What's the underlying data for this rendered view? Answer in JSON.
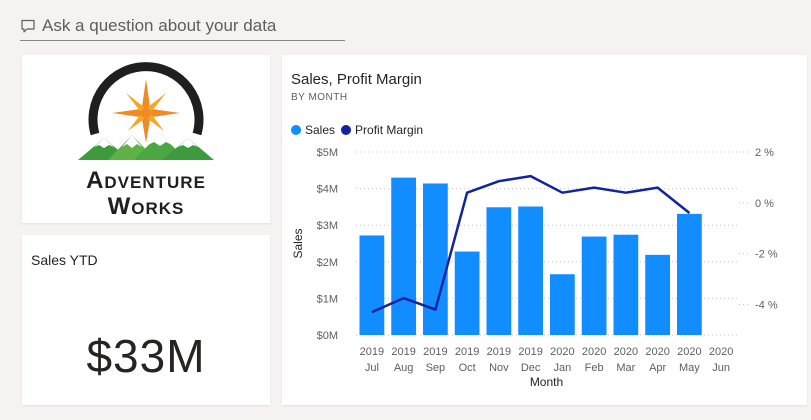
{
  "qa": {
    "placeholder": "Ask a question about your data",
    "icon": "comment-icon"
  },
  "logo": {
    "line1": "Adventure",
    "line2": "Works"
  },
  "sales_ytd": {
    "title": "Sales YTD",
    "value": "$33M"
  },
  "chart": {
    "title": "Sales, Profit Margin",
    "subtitle": "BY MONTH",
    "legend": [
      {
        "label": "Sales",
        "color": "#118dff"
      },
      {
        "label": "Profit Margin",
        "color": "#12239e"
      }
    ]
  },
  "chart_data": {
    "type": "bar",
    "title": "Sales, Profit Margin",
    "subtitle": "BY MONTH",
    "xlabel": "Month",
    "ylabel": "Sales",
    "categories": [
      {
        "year": "2019",
        "month": "Jul"
      },
      {
        "year": "2019",
        "month": "Aug"
      },
      {
        "year": "2019",
        "month": "Sep"
      },
      {
        "year": "2019",
        "month": "Oct"
      },
      {
        "year": "2019",
        "month": "Nov"
      },
      {
        "year": "2019",
        "month": "Dec"
      },
      {
        "year": "2020",
        "month": "Jan"
      },
      {
        "year": "2020",
        "month": "Feb"
      },
      {
        "year": "2020",
        "month": "Mar"
      },
      {
        "year": "2020",
        "month": "Apr"
      },
      {
        "year": "2020",
        "month": "May"
      },
      {
        "year": "2020",
        "month": "Jun"
      }
    ],
    "series": [
      {
        "name": "Sales",
        "type": "bar",
        "axis": "left",
        "color": "#118dff",
        "values": [
          2.72,
          4.3,
          4.14,
          2.28,
          3.49,
          3.51,
          1.66,
          2.69,
          2.74,
          2.19,
          3.31,
          null
        ]
      },
      {
        "name": "Profit Margin",
        "type": "line",
        "axis": "right",
        "color": "#12239e",
        "values": [
          -4.3,
          -3.75,
          -4.2,
          0.4,
          0.85,
          1.05,
          0.4,
          0.6,
          0.4,
          0.6,
          -0.4,
          null
        ]
      }
    ],
    "y_left": {
      "ticks": [
        "$0M",
        "$1M",
        "$2M",
        "$3M",
        "$4M",
        "$5M"
      ],
      "range": [
        0,
        5
      ]
    },
    "y_right": {
      "ticks": [
        "2 %",
        "0 %",
        "-2 %",
        "-4 %"
      ],
      "values": [
        2,
        0,
        -2,
        -4
      ],
      "range": [
        -5.2,
        2
      ]
    },
    "gridlines": true,
    "legend_position": "top-left"
  }
}
